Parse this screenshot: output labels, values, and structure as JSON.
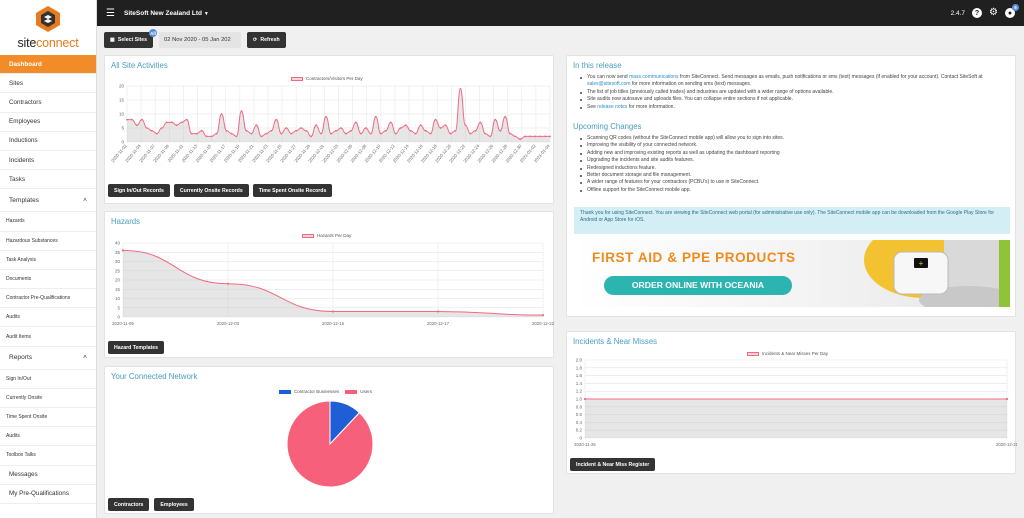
{
  "brand": {
    "logo_name": "siteconnect",
    "logo_part1": "site",
    "logo_part2": "connect"
  },
  "sidebar": {
    "items": [
      {
        "label": "Dashboard",
        "type": "item",
        "active": true
      },
      {
        "label": "Sites",
        "type": "item"
      },
      {
        "label": "Contractors",
        "type": "item"
      },
      {
        "label": "Employees",
        "type": "item"
      },
      {
        "label": "Inductions",
        "type": "item"
      },
      {
        "label": "Incidents",
        "type": "item"
      },
      {
        "label": "Tasks",
        "type": "item"
      },
      {
        "label": "Templates",
        "type": "section"
      },
      {
        "label": "Hazards",
        "type": "sub"
      },
      {
        "label": "Hazardous Substances",
        "type": "sub"
      },
      {
        "label": "Task Analysis",
        "type": "sub"
      },
      {
        "label": "Documents",
        "type": "sub"
      },
      {
        "label": "Contractor Pre-Qualifications",
        "type": "sub"
      },
      {
        "label": "Audits",
        "type": "sub"
      },
      {
        "label": "Audit Items",
        "type": "sub"
      },
      {
        "label": "Reports",
        "type": "section"
      },
      {
        "label": "Sign In/Out",
        "type": "sub"
      },
      {
        "label": "Currently Onsite",
        "type": "sub"
      },
      {
        "label": "Time Spent Onsite",
        "type": "sub"
      },
      {
        "label": "Audits",
        "type": "sub"
      },
      {
        "label": "Toolbox Talks",
        "type": "sub"
      },
      {
        "label": "Messages",
        "type": "item"
      },
      {
        "label": "My Pre-Qualifications",
        "type": "item"
      }
    ]
  },
  "topbar": {
    "site_name": "SiteSoft New Zealand Ltd",
    "version": "2.4.7",
    "notification_count": "6",
    "help_glyph": "?"
  },
  "toolbar": {
    "select_sites": "Select Sites",
    "select_sites_badge": "All",
    "date_range": "02 Nov 2020 - 05 Jan 202",
    "refresh": "Refresh"
  },
  "activities": {
    "title": "All Site Activities",
    "legend": "Contractors/Visitors Per Day",
    "buttons": [
      "Sign In/Out Records",
      "Currently Onsite Records",
      "Time Spent Onsite Records"
    ],
    "y_ticks": [
      "20",
      "15",
      "10",
      "5",
      "0"
    ],
    "x_ticks": [
      "2020-11-02",
      "2020-11-04",
      "2020-11-07",
      "2020-11-09",
      "2020-11-11",
      "2020-11-13",
      "2020-11-15",
      "2020-11-17",
      "2020-11-19",
      "2020-11-21",
      "2020-11-23",
      "2020-11-25",
      "2020-11-27",
      "2020-11-29",
      "2020-12-01",
      "2020-12-03",
      "2020-12-05",
      "2020-12-08",
      "2020-12-10",
      "2020-12-12",
      "2020-12-14",
      "2020-12-16",
      "2020-12-18",
      "2020-12-20",
      "2020-12-22",
      "2020-12-24",
      "2020-12-26",
      "2020-12-28",
      "2020-12-30",
      "2021-01-02",
      "2021-01-04"
    ]
  },
  "hazards": {
    "title": "Hazards",
    "legend": "Hazards Per Day",
    "button": "Hazard Templates",
    "y_ticks": [
      "40",
      "35",
      "30",
      "25",
      "20",
      "15",
      "10",
      "5",
      "0"
    ],
    "x_ticks": [
      "2020-11-09",
      "2020-12-03",
      "2020-12-15",
      "2020-12-17",
      "2020-12-22"
    ]
  },
  "network": {
    "title": "Your Connected Network",
    "legend": [
      "Contractor Businesses",
      "Users"
    ],
    "buttons": [
      "Contractors",
      "Employees"
    ]
  },
  "release": {
    "title": "In this release",
    "items": [
      {
        "pre": "You can now send ",
        "link": "mass communications",
        "post": " from SiteConnect. Send messages as emails, push notifications or sms (text) messages (if enabled for your account). Contact SiteSoft at ",
        "link2": "sales@sitesoft.com",
        "post2": " for more information on sending sms (text) messages."
      },
      {
        "pre": "The list of job titles (previously called trades) and industries are updated with a wider range of options available."
      },
      {
        "pre": "Site audits now autosave and uploads files. You can collapse entire sections if not applicable."
      },
      {
        "pre": "See ",
        "link": "release notes",
        "post": " for more information."
      }
    ],
    "upcoming_title": "Upcoming Changes",
    "upcoming": [
      "Scanning QR codes (without the SiteConnect mobile app) will allow you to sign into sites.",
      "Improving the visibility of your connected network.",
      "Adding new and improving existing reports as well as updating the dashboard reporting",
      "Upgrading the incidents and site audits features.",
      "Redesigned inductions feature.",
      "Better document storage and file management.",
      "A wider range of features for your contractors (PCBU's) to use in SiteConnect.",
      "Offline support for the SiteConnect mobile app."
    ],
    "info": "Thank you for using SiteConnect. You are viewing the SiteConnect web portal (for administrative use only). The SiteConnect mobile app can be downloaded from the Google Play Store for Android or App Store for iOS.",
    "banner_headline": "FIRST AID & PPE PRODUCTS",
    "banner_cta": "ORDER ONLINE WITH OCEANIA"
  },
  "incidents": {
    "title": "Incidents & Near Misses",
    "legend": "Incidents & Near Misses Per Day",
    "button": "Incident & Near Miss Register",
    "y_ticks": [
      "2.0",
      "1.8",
      "1.6",
      "1.4",
      "1.2",
      "1.0",
      "0.8",
      "0.6",
      "0.4",
      "0.2",
      "0"
    ],
    "x_ticks": [
      "2020-11-26",
      "2020-12-21"
    ]
  },
  "chart_data": [
    {
      "type": "area",
      "title": "All Site Activities",
      "series": [
        {
          "name": "Contractors/Visitors Per Day",
          "values": [
            8,
            8,
            6,
            8,
            5,
            4,
            3,
            5,
            7,
            7,
            6,
            7,
            8,
            3,
            3,
            4,
            2,
            2,
            3,
            10,
            4,
            3,
            2,
            11,
            4,
            3,
            6,
            2,
            3,
            4,
            8,
            3,
            5,
            3,
            4,
            5,
            4,
            2,
            6,
            3,
            9,
            3,
            4,
            5,
            3,
            4,
            7,
            3,
            5,
            3,
            9,
            3,
            4,
            7,
            3,
            5,
            6,
            4,
            3,
            6,
            4,
            3,
            8,
            5,
            6,
            3,
            4,
            19,
            6,
            3,
            4,
            7,
            3,
            2,
            8,
            4,
            9,
            3,
            2,
            1,
            2,
            2,
            2,
            2,
            2,
            2
          ]
        }
      ],
      "ylim": [
        0,
        20
      ],
      "xlabel": "",
      "ylabel": ""
    },
    {
      "type": "area",
      "title": "Hazards",
      "categories": [
        "2020-11-09",
        "2020-12-03",
        "2020-12-15",
        "2020-12-17",
        "2020-12-22"
      ],
      "series": [
        {
          "name": "Hazards Per Day",
          "values": [
            36,
            18,
            3,
            3,
            1
          ]
        }
      ],
      "ylim": [
        0,
        40
      ]
    },
    {
      "type": "pie",
      "title": "Your Connected Network",
      "categories": [
        "Contractor Businesses",
        "Users"
      ],
      "values": [
        12,
        88
      ],
      "colors": [
        "#1f5fd6",
        "#f7607b"
      ]
    },
    {
      "type": "area",
      "title": "Incidents & Near Misses",
      "categories": [
        "2020-11-26",
        "2020-12-21"
      ],
      "series": [
        {
          "name": "Incidents & Near Misses Per Day",
          "values": [
            1,
            1
          ]
        }
      ],
      "ylim": [
        0,
        2
      ]
    }
  ],
  "colors": {
    "accent": "#f28c28",
    "topbar": "#202020",
    "title": "#4a9ebf",
    "line": "#f26a82"
  }
}
